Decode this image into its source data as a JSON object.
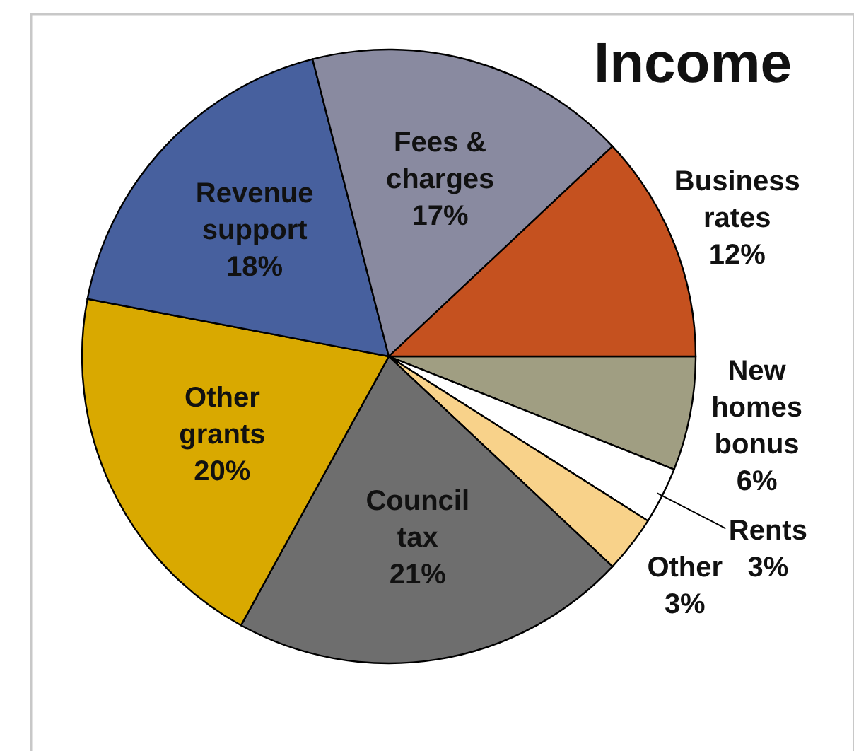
{
  "chart_data": {
    "type": "pie",
    "title": "Income",
    "categories": [
      "New homes bonus",
      "Rents",
      "Other",
      "Council tax",
      "Other grants",
      "Revenue support",
      "Fees & charges",
      "Business rates"
    ],
    "values": [
      6,
      3,
      3,
      21,
      20,
      18,
      17,
      12
    ],
    "colors": [
      "#a09e82",
      "#ffffff",
      "#f8d28a",
      "#6e6e6e",
      "#d9a900",
      "#47609e",
      "#898aa0",
      "#c5511f"
    ],
    "value_labels": [
      "6%",
      "3%",
      "3%",
      "21%",
      "20%",
      "18%",
      "17%",
      "12%"
    ]
  }
}
